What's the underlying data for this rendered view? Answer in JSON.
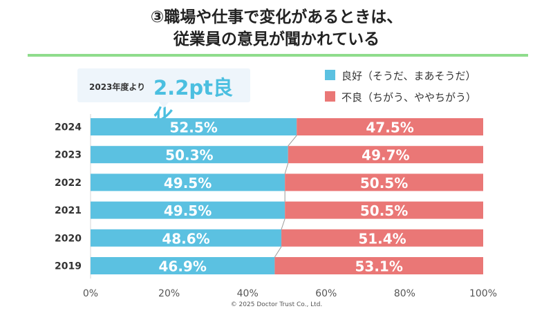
{
  "title_line1": "③職場や仕事で変化があるときは、",
  "title_line2": "従業員の意見が聞かれている",
  "callout": {
    "prefix": "2023年度より",
    "highlight": "2.2pt良化"
  },
  "legend": {
    "good": "良好（そうだ、まあそうだ）",
    "bad": "不良（ちがう、ややちがう）"
  },
  "colors": {
    "good": "#5bc1e1",
    "bad": "#ea7776",
    "title_rule": "#8fdc8c",
    "highlight": "#4bbfe0"
  },
  "footer": "© 2025 Doctor Trust Co., Ltd.",
  "chart_data": {
    "type": "bar",
    "orientation": "horizontal",
    "stacked": true,
    "categories": [
      "2024",
      "2023",
      "2022",
      "2021",
      "2020",
      "2019"
    ],
    "series": [
      {
        "name": "良好（そうだ、まあそうだ）",
        "values": [
          52.5,
          50.3,
          49.5,
          49.5,
          48.6,
          46.9
        ],
        "labels": [
          "52.5%",
          "50.3%",
          "49.5%",
          "49.5%",
          "48.6%",
          "46.9%"
        ]
      },
      {
        "name": "不良（ちがう、ややちがう）",
        "values": [
          47.5,
          49.7,
          50.5,
          50.5,
          51.4,
          53.1
        ],
        "labels": [
          "47.5%",
          "49.7%",
          "50.5%",
          "50.5%",
          "51.4%",
          "53.1%"
        ]
      }
    ],
    "xlim": [
      0,
      100
    ],
    "xticks": [
      "0%",
      "20%",
      "40%",
      "60%",
      "80%",
      "100%"
    ],
    "grid": false,
    "legend_position": "top-right"
  }
}
